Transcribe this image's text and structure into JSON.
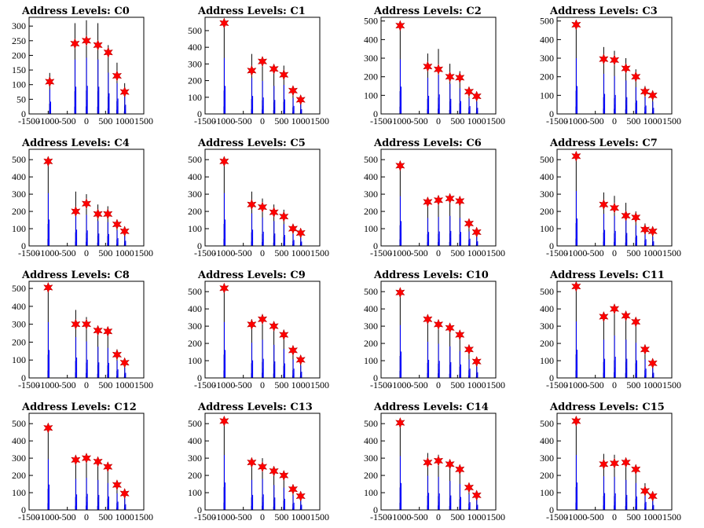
{
  "colors": {
    "histogram": "#0000ff",
    "histogram_dark": "#000000",
    "peak_marker": "#ff0000",
    "frame": "#000000"
  },
  "chart_data": [
    {
      "type": "bar",
      "title": "Address Levels: C0",
      "xlim": [
        -1500,
        1500
      ],
      "ylim": [
        0,
        330
      ],
      "yticks": [
        0,
        50,
        100,
        150,
        200,
        250,
        300
      ],
      "xticks": [
        -1500,
        -1000,
        -500,
        0,
        500,
        1000,
        1500
      ],
      "peaks": [
        {
          "x": -960,
          "y": 140,
          "marker": 110
        },
        {
          "x": -300,
          "y": 310,
          "marker": 240
        },
        {
          "x": 0,
          "y": 320,
          "marker": 250
        },
        {
          "x": 300,
          "y": 310,
          "marker": 235
        },
        {
          "x": 570,
          "y": 235,
          "marker": 210
        },
        {
          "x": 800,
          "y": 175,
          "marker": 130
        },
        {
          "x": 1000,
          "y": 105,
          "marker": 75
        }
      ]
    },
    {
      "type": "bar",
      "title": "Address Levels: C1",
      "xlim": [
        -1500,
        1500
      ],
      "ylim": [
        0,
        580
      ],
      "yticks": [
        0,
        100,
        200,
        300,
        400,
        500
      ],
      "xticks": [
        -1500,
        -1000,
        -500,
        0,
        500,
        1000,
        1500
      ],
      "peaks": [
        {
          "x": -1000,
          "y": 560,
          "marker": 545
        },
        {
          "x": -280,
          "y": 360,
          "marker": 260
        },
        {
          "x": 0,
          "y": 330,
          "marker": 315
        },
        {
          "x": 300,
          "y": 280,
          "marker": 270
        },
        {
          "x": 560,
          "y": 290,
          "marker": 235
        },
        {
          "x": 800,
          "y": 160,
          "marker": 140
        },
        {
          "x": 1000,
          "y": 95,
          "marker": 85
        }
      ]
    },
    {
      "type": "bar",
      "title": "Address Levels: C2",
      "xlim": [
        -1500,
        1500
      ],
      "ylim": [
        0,
        520
      ],
      "yticks": [
        0,
        100,
        200,
        300,
        400,
        500
      ],
      "xticks": [
        -1500,
        -1000,
        -500,
        0,
        500,
        1000,
        1500
      ],
      "peaks": [
        {
          "x": -1000,
          "y": 490,
          "marker": 475
        },
        {
          "x": -280,
          "y": 325,
          "marker": 255
        },
        {
          "x": 0,
          "y": 350,
          "marker": 240
        },
        {
          "x": 300,
          "y": 270,
          "marker": 200
        },
        {
          "x": 560,
          "y": 230,
          "marker": 195
        },
        {
          "x": 800,
          "y": 140,
          "marker": 120
        },
        {
          "x": 1000,
          "y": 110,
          "marker": 95
        }
      ]
    },
    {
      "type": "bar",
      "title": "Address Levels: C3",
      "xlim": [
        -1500,
        1500
      ],
      "ylim": [
        0,
        520
      ],
      "yticks": [
        0,
        100,
        200,
        300,
        400,
        500
      ],
      "xticks": [
        -1500,
        -1000,
        -500,
        0,
        500,
        1000,
        1500
      ],
      "peaks": [
        {
          "x": -1000,
          "y": 500,
          "marker": 480
        },
        {
          "x": -280,
          "y": 360,
          "marker": 295
        },
        {
          "x": 0,
          "y": 340,
          "marker": 290
        },
        {
          "x": 300,
          "y": 300,
          "marker": 245
        },
        {
          "x": 560,
          "y": 240,
          "marker": 200
        },
        {
          "x": 800,
          "y": 150,
          "marker": 120
        },
        {
          "x": 1000,
          "y": 110,
          "marker": 100
        }
      ]
    },
    {
      "type": "bar",
      "title": "Address Levels: C4",
      "xlim": [
        -1500,
        1500
      ],
      "ylim": [
        0,
        560
      ],
      "yticks": [
        0,
        100,
        200,
        300,
        400,
        500
      ],
      "xticks": [
        -1500,
        -1000,
        -500,
        0,
        500,
        1000,
        1500
      ],
      "peaks": [
        {
          "x": -1000,
          "y": 510,
          "marker": 490
        },
        {
          "x": -280,
          "y": 315,
          "marker": 200
        },
        {
          "x": 0,
          "y": 300,
          "marker": 245
        },
        {
          "x": 300,
          "y": 240,
          "marker": 185
        },
        {
          "x": 560,
          "y": 230,
          "marker": 185
        },
        {
          "x": 800,
          "y": 150,
          "marker": 125
        },
        {
          "x": 1000,
          "y": 100,
          "marker": 85
        }
      ]
    },
    {
      "type": "bar",
      "title": "Address Levels: C5",
      "xlim": [
        -1500,
        1500
      ],
      "ylim": [
        0,
        560
      ],
      "yticks": [
        0,
        100,
        200,
        300,
        400,
        500
      ],
      "xticks": [
        -1500,
        -1000,
        -500,
        0,
        500,
        1000,
        1500
      ],
      "peaks": [
        {
          "x": -1000,
          "y": 510,
          "marker": 490
        },
        {
          "x": -280,
          "y": 315,
          "marker": 240
        },
        {
          "x": 0,
          "y": 275,
          "marker": 225
        },
        {
          "x": 300,
          "y": 240,
          "marker": 195
        },
        {
          "x": 560,
          "y": 210,
          "marker": 170
        },
        {
          "x": 800,
          "y": 115,
          "marker": 100
        },
        {
          "x": 1000,
          "y": 85,
          "marker": 75
        }
      ]
    },
    {
      "type": "bar",
      "title": "Address Levels: C6",
      "xlim": [
        -1500,
        1500
      ],
      "ylim": [
        0,
        560
      ],
      "yticks": [
        0,
        100,
        200,
        300,
        400,
        500
      ],
      "xticks": [
        -1500,
        -1000,
        -500,
        0,
        500,
        1000,
        1500
      ],
      "peaks": [
        {
          "x": -1000,
          "y": 480,
          "marker": 465
        },
        {
          "x": -280,
          "y": 270,
          "marker": 255
        },
        {
          "x": 0,
          "y": 280,
          "marker": 265
        },
        {
          "x": 300,
          "y": 290,
          "marker": 275
        },
        {
          "x": 560,
          "y": 270,
          "marker": 260
        },
        {
          "x": 800,
          "y": 140,
          "marker": 130
        },
        {
          "x": 1000,
          "y": 90,
          "marker": 80
        }
      ]
    },
    {
      "type": "bar",
      "title": "Address Levels: C7",
      "xlim": [
        -1500,
        1500
      ],
      "ylim": [
        0,
        560
      ],
      "yticks": [
        0,
        100,
        200,
        300,
        400,
        500
      ],
      "xticks": [
        -1500,
        -1000,
        -500,
        0,
        500,
        1000,
        1500
      ],
      "peaks": [
        {
          "x": -1000,
          "y": 530,
          "marker": 520
        },
        {
          "x": -280,
          "y": 310,
          "marker": 240
        },
        {
          "x": 0,
          "y": 290,
          "marker": 220
        },
        {
          "x": 300,
          "y": 250,
          "marker": 175
        },
        {
          "x": 560,
          "y": 200,
          "marker": 165
        },
        {
          "x": 800,
          "y": 130,
          "marker": 95
        },
        {
          "x": 1000,
          "y": 90,
          "marker": 85
        }
      ]
    },
    {
      "type": "bar",
      "title": "Address Levels: C8",
      "xlim": [
        -1500,
        1500
      ],
      "ylim": [
        0,
        540
      ],
      "yticks": [
        0,
        100,
        200,
        300,
        400,
        500
      ],
      "xticks": [
        -1500,
        -1000,
        -500,
        0,
        500,
        1000,
        1500
      ],
      "peaks": [
        {
          "x": -1000,
          "y": 520,
          "marker": 505
        },
        {
          "x": -280,
          "y": 380,
          "marker": 300
        },
        {
          "x": 0,
          "y": 340,
          "marker": 300
        },
        {
          "x": 300,
          "y": 290,
          "marker": 265
        },
        {
          "x": 560,
          "y": 280,
          "marker": 260
        },
        {
          "x": 800,
          "y": 160,
          "marker": 130
        },
        {
          "x": 1000,
          "y": 95,
          "marker": 85
        }
      ]
    },
    {
      "type": "bar",
      "title": "Address Levels: C9",
      "xlim": [
        -1500,
        1500
      ],
      "ylim": [
        0,
        560
      ],
      "yticks": [
        0,
        100,
        200,
        300,
        400,
        500
      ],
      "xticks": [
        -1500,
        -1000,
        -500,
        0,
        500,
        1000,
        1500
      ],
      "peaks": [
        {
          "x": -1000,
          "y": 540,
          "marker": 520
        },
        {
          "x": -280,
          "y": 340,
          "marker": 310
        },
        {
          "x": 0,
          "y": 370,
          "marker": 340
        },
        {
          "x": 300,
          "y": 320,
          "marker": 300
        },
        {
          "x": 560,
          "y": 280,
          "marker": 250
        },
        {
          "x": 800,
          "y": 180,
          "marker": 160
        },
        {
          "x": 1000,
          "y": 120,
          "marker": 105
        }
      ]
    },
    {
      "type": "bar",
      "title": "Address Levels: C10",
      "xlim": [
        -1500,
        1500
      ],
      "ylim": [
        0,
        560
      ],
      "yticks": [
        0,
        100,
        200,
        300,
        400,
        500
      ],
      "xticks": [
        -1500,
        -1000,
        -500,
        0,
        500,
        1000,
        1500
      ],
      "peaks": [
        {
          "x": -1000,
          "y": 510,
          "marker": 495
        },
        {
          "x": -280,
          "y": 350,
          "marker": 340
        },
        {
          "x": 0,
          "y": 330,
          "marker": 310
        },
        {
          "x": 300,
          "y": 305,
          "marker": 290
        },
        {
          "x": 560,
          "y": 260,
          "marker": 250
        },
        {
          "x": 800,
          "y": 180,
          "marker": 165
        },
        {
          "x": 1000,
          "y": 110,
          "marker": 95
        }
      ]
    },
    {
      "type": "bar",
      "title": "Address Levels: C11",
      "xlim": [
        -1500,
        1500
      ],
      "ylim": [
        0,
        560
      ],
      "yticks": [
        0,
        100,
        200,
        300,
        400,
        500
      ],
      "xticks": [
        -1500,
        -1000,
        -500,
        0,
        500,
        1000,
        1500
      ],
      "peaks": [
        {
          "x": -1000,
          "y": 545,
          "marker": 530
        },
        {
          "x": -280,
          "y": 370,
          "marker": 355
        },
        {
          "x": 0,
          "y": 410,
          "marker": 400
        },
        {
          "x": 300,
          "y": 370,
          "marker": 360
        },
        {
          "x": 560,
          "y": 340,
          "marker": 325
        },
        {
          "x": 800,
          "y": 180,
          "marker": 165
        },
        {
          "x": 1000,
          "y": 100,
          "marker": 85
        }
      ]
    },
    {
      "type": "bar",
      "title": "Address Levels: C12",
      "xlim": [
        -1500,
        1500
      ],
      "ylim": [
        0,
        560
      ],
      "yticks": [
        0,
        100,
        200,
        300,
        400,
        500
      ],
      "xticks": [
        -1500,
        -1000,
        -500,
        0,
        500,
        1000,
        1500
      ],
      "peaks": [
        {
          "x": -1000,
          "y": 490,
          "marker": 475
        },
        {
          "x": -280,
          "y": 300,
          "marker": 290
        },
        {
          "x": 0,
          "y": 310,
          "marker": 300
        },
        {
          "x": 300,
          "y": 290,
          "marker": 280
        },
        {
          "x": 560,
          "y": 260,
          "marker": 250
        },
        {
          "x": 800,
          "y": 160,
          "marker": 145
        },
        {
          "x": 1000,
          "y": 110,
          "marker": 95
        }
      ]
    },
    {
      "type": "bar",
      "title": "Address Levels: C13",
      "xlim": [
        -1500,
        1500
      ],
      "ylim": [
        0,
        560
      ],
      "yticks": [
        0,
        100,
        200,
        300,
        400,
        500
      ],
      "xticks": [
        -1500,
        -1000,
        -500,
        0,
        500,
        1000,
        1500
      ],
      "peaks": [
        {
          "x": -1000,
          "y": 530,
          "marker": 515
        },
        {
          "x": -280,
          "y": 290,
          "marker": 275
        },
        {
          "x": 0,
          "y": 300,
          "marker": 250
        },
        {
          "x": 300,
          "y": 240,
          "marker": 225
        },
        {
          "x": 560,
          "y": 215,
          "marker": 200
        },
        {
          "x": 800,
          "y": 140,
          "marker": 120
        },
        {
          "x": 1000,
          "y": 100,
          "marker": 80
        }
      ]
    },
    {
      "type": "bar",
      "title": "Address Levels: C14",
      "xlim": [
        -1500,
        1500
      ],
      "ylim": [
        0,
        560
      ],
      "yticks": [
        0,
        100,
        200,
        300,
        400,
        500
      ],
      "xticks": [
        -1500,
        -1000,
        -500,
        0,
        500,
        1000,
        1500
      ],
      "peaks": [
        {
          "x": -1000,
          "y": 520,
          "marker": 505
        },
        {
          "x": -280,
          "y": 330,
          "marker": 275
        },
        {
          "x": 0,
          "y": 320,
          "marker": 285
        },
        {
          "x": 300,
          "y": 280,
          "marker": 265
        },
        {
          "x": 560,
          "y": 250,
          "marker": 235
        },
        {
          "x": 800,
          "y": 150,
          "marker": 130
        },
        {
          "x": 1000,
          "y": 100,
          "marker": 85
        }
      ]
    },
    {
      "type": "bar",
      "title": "Address Levels: C15",
      "xlim": [
        -1500,
        1500
      ],
      "ylim": [
        0,
        560
      ],
      "yticks": [
        0,
        100,
        200,
        300,
        400,
        500
      ],
      "xticks": [
        -1500,
        -1000,
        -500,
        0,
        500,
        1000,
        1500
      ],
      "peaks": [
        {
          "x": -1000,
          "y": 530,
          "marker": 515
        },
        {
          "x": -280,
          "y": 325,
          "marker": 265
        },
        {
          "x": 0,
          "y": 320,
          "marker": 270
        },
        {
          "x": 300,
          "y": 290,
          "marker": 275
        },
        {
          "x": 560,
          "y": 260,
          "marker": 235
        },
        {
          "x": 800,
          "y": 155,
          "marker": 110
        },
        {
          "x": 1000,
          "y": 95,
          "marker": 80
        }
      ]
    }
  ]
}
